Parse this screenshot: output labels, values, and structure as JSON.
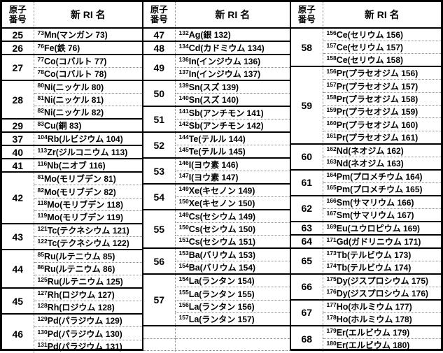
{
  "header": {
    "atomic_number_line1": "原子",
    "atomic_number_line2": "番号",
    "ri_name": "新 RI 名"
  },
  "colors": {
    "border": "#000000",
    "inner_divider": "#8a8a8a",
    "background": "#ffffff",
    "text": "#000000"
  },
  "table": {
    "column_groups": [
      {
        "groups": [
          {
            "z": "25",
            "isotopes": [
              {
                "mass": "73",
                "symbol": "Mn",
                "name": "マンガン 73"
              }
            ]
          },
          {
            "z": "26",
            "isotopes": [
              {
                "mass": "76",
                "symbol": "Fe",
                "name": "鉄 76"
              }
            ]
          },
          {
            "z": "27",
            "isotopes": [
              {
                "mass": "77",
                "symbol": "Co",
                "name": "コバルト 77"
              },
              {
                "mass": "78",
                "symbol": "Co",
                "name": "コバルト 78"
              }
            ]
          },
          {
            "z": "28",
            "isotopes": [
              {
                "mass": "80",
                "symbol": "Ni",
                "name": "ニッケル 80"
              },
              {
                "mass": "81",
                "symbol": "Ni",
                "name": "ニッケル 81"
              },
              {
                "mass": "82",
                "symbol": "Ni",
                "name": "ニッケル 82"
              }
            ]
          },
          {
            "z": "29",
            "isotopes": [
              {
                "mass": "83",
                "symbol": "Cu",
                "name": "銅 83"
              }
            ]
          },
          {
            "z": "37",
            "isotopes": [
              {
                "mass": "104",
                "symbol": "Rb",
                "name": "ルビジウム 104"
              }
            ]
          },
          {
            "z": "40",
            "isotopes": [
              {
                "mass": "113",
                "symbol": "Zr",
                "name": "ジルコニウム 113"
              }
            ]
          },
          {
            "z": "41",
            "isotopes": [
              {
                "mass": "116",
                "symbol": "Nb",
                "name": "ニオブ 116"
              }
            ]
          },
          {
            "z": "42",
            "isotopes": [
              {
                "mass": "81",
                "symbol": "Mo",
                "name": "モリブデン 81"
              },
              {
                "mass": "82",
                "symbol": "Mo",
                "name": "モリブデン 82"
              },
              {
                "mass": "118",
                "symbol": "Mo",
                "name": "モリブデン 118"
              },
              {
                "mass": "119",
                "symbol": "Mo",
                "name": "モリブデン 119"
              }
            ]
          },
          {
            "z": "43",
            "isotopes": [
              {
                "mass": "121",
                "symbol": "Tc",
                "name": "テクネシウム 121"
              },
              {
                "mass": "122",
                "symbol": "Tc",
                "name": "テクネシウム 122"
              }
            ]
          },
          {
            "z": "44",
            "isotopes": [
              {
                "mass": "85",
                "symbol": "Ru",
                "name": "ルテニウム 85"
              },
              {
                "mass": "86",
                "symbol": "Ru",
                "name": "ルテニウム 86"
              },
              {
                "mass": "125",
                "symbol": "Ru",
                "name": "ルテニウム 125"
              }
            ]
          },
          {
            "z": "45",
            "isotopes": [
              {
                "mass": "127",
                "symbol": "Rh",
                "name": "ロジウム 127"
              },
              {
                "mass": "128",
                "symbol": "Rh",
                "name": "ロジウム 128"
              }
            ]
          },
          {
            "z": "46",
            "isotopes": [
              {
                "mass": "129",
                "symbol": "Pd",
                "name": "パラジウム 129"
              },
              {
                "mass": "130",
                "symbol": "Pd",
                "name": "パラジウム 130"
              },
              {
                "mass": "131",
                "symbol": "Pd",
                "name": "パラジウム 131"
              }
            ]
          }
        ],
        "empty_rows": 0
      },
      {
        "groups": [
          {
            "z": "47",
            "isotopes": [
              {
                "mass": "132",
                "symbol": "Ag",
                "name": "銀 132"
              }
            ]
          },
          {
            "z": "48",
            "isotopes": [
              {
                "mass": "134",
                "symbol": "Cd",
                "name": "カドミウム 134"
              }
            ]
          },
          {
            "z": "49",
            "isotopes": [
              {
                "mass": "136",
                "symbol": "In",
                "name": "インジウム 136"
              },
              {
                "mass": "137",
                "symbol": "In",
                "name": "インジウム 137"
              }
            ]
          },
          {
            "z": "50",
            "isotopes": [
              {
                "mass": "139",
                "symbol": "Sn",
                "name": "スズ 139"
              },
              {
                "mass": "140",
                "symbol": "Sn",
                "name": "スズ 140"
              }
            ]
          },
          {
            "z": "51",
            "isotopes": [
              {
                "mass": "141",
                "symbol": "Sb",
                "name": "アンチモン 141"
              },
              {
                "mass": "142",
                "symbol": "Sb",
                "name": "アンチモン 142"
              }
            ]
          },
          {
            "z": "52",
            "isotopes": [
              {
                "mass": "144",
                "symbol": "Te",
                "name": "テルル 144"
              },
              {
                "mass": "145",
                "symbol": "Te",
                "name": "テルル 145"
              }
            ]
          },
          {
            "z": "53",
            "isotopes": [
              {
                "mass": "146",
                "symbol": "I",
                "name": "ヨウ素 146"
              },
              {
                "mass": "147",
                "symbol": "I",
                "name": "ヨウ素 147"
              }
            ]
          },
          {
            "z": "54",
            "isotopes": [
              {
                "mass": "149",
                "symbol": "Xe",
                "name": "キセノン 149"
              },
              {
                "mass": "150",
                "symbol": "Xe",
                "name": "キセノン 150"
              }
            ]
          },
          {
            "z": "55",
            "isotopes": [
              {
                "mass": "149",
                "symbol": "Cs",
                "name": "セシウム 149"
              },
              {
                "mass": "150",
                "symbol": "Cs",
                "name": "セシウム 150"
              },
              {
                "mass": "151",
                "symbol": "Cs",
                "name": "セシウム 151"
              }
            ]
          },
          {
            "z": "56",
            "isotopes": [
              {
                "mass": "153",
                "symbol": "Ba",
                "name": "バリウム 153"
              },
              {
                "mass": "154",
                "symbol": "Ba",
                "name": "バリウム 154"
              }
            ]
          },
          {
            "z": "57",
            "isotopes": [
              {
                "mass": "154",
                "symbol": "La",
                "name": "ランタン 154"
              },
              {
                "mass": "155",
                "symbol": "La",
                "name": "ランタン 155"
              },
              {
                "mass": "156",
                "symbol": "La",
                "name": "ランタン 156"
              },
              {
                "mass": "157",
                "symbol": "La",
                "name": "ランタン 157"
              }
            ]
          }
        ],
        "empty_rows": 2,
        "open_bottom": true
      },
      {
        "groups": [
          {
            "z": "58",
            "isotopes": [
              {
                "mass": "156",
                "symbol": "Ce",
                "name": "セリウム 156"
              },
              {
                "mass": "157",
                "symbol": "Ce",
                "name": "セリウム 157"
              },
              {
                "mass": "158",
                "symbol": "Ce",
                "name": "セリウム 158"
              }
            ]
          },
          {
            "z": "59",
            "isotopes": [
              {
                "mass": "156",
                "symbol": "Pr",
                "name": "プラセオジム 156"
              },
              {
                "mass": "157",
                "symbol": "Pr",
                "name": "プラセオジム 157"
              },
              {
                "mass": "158",
                "symbol": "Pr",
                "name": "プラセオジム 158"
              },
              {
                "mass": "159",
                "symbol": "Pr",
                "name": "プラセオジム 159"
              },
              {
                "mass": "160",
                "symbol": "Pr",
                "name": "プラセオジム 160"
              },
              {
                "mass": "161",
                "symbol": "Pr",
                "name": "プラセオジム 161"
              }
            ]
          },
          {
            "z": "60",
            "isotopes": [
              {
                "mass": "162",
                "symbol": "Nd",
                "name": "ネオジム 162"
              },
              {
                "mass": "163",
                "symbol": "Nd",
                "name": "ネオジム 163"
              }
            ]
          },
          {
            "z": "61",
            "isotopes": [
              {
                "mass": "164",
                "symbol": "Pm",
                "name": "プロメチウム 164"
              },
              {
                "mass": "165",
                "symbol": "Pm",
                "name": "プロメチウム 165"
              }
            ]
          },
          {
            "z": "62",
            "isotopes": [
              {
                "mass": "166",
                "symbol": "Sm",
                "name": "サマリウム 166"
              },
              {
                "mass": "167",
                "symbol": "Sm",
                "name": "サマリウム 167"
              }
            ]
          },
          {
            "z": "63",
            "isotopes": [
              {
                "mass": "169",
                "symbol": "Eu",
                "name": "ユウロピウム 169"
              }
            ]
          },
          {
            "z": "64",
            "isotopes": [
              {
                "mass": "171",
                "symbol": "Gd",
                "name": "ガドリニウム 171"
              }
            ]
          },
          {
            "z": "65",
            "isotopes": [
              {
                "mass": "173",
                "symbol": "Tb",
                "name": "テルビウム 173"
              },
              {
                "mass": "174",
                "symbol": "Tb",
                "name": "テルビウム 174"
              }
            ]
          },
          {
            "z": "66",
            "isotopes": [
              {
                "mass": "175",
                "symbol": "Dy",
                "name": "ジスプロシウム 175"
              },
              {
                "mass": "176",
                "symbol": "Dy",
                "name": "ジスプロシウム 176"
              }
            ]
          },
          {
            "z": "67",
            "isotopes": [
              {
                "mass": "177",
                "symbol": "Ho",
                "name": "ホルミウム 177"
              },
              {
                "mass": "178",
                "symbol": "Ho",
                "name": "ホルミウム 178"
              }
            ]
          },
          {
            "z": "68",
            "isotopes": [
              {
                "mass": "179",
                "symbol": "Er",
                "name": "エルビウム 179"
              },
              {
                "mass": "180",
                "symbol": "Er",
                "name": "エルビウム 180"
              }
            ]
          }
        ],
        "empty_rows": 0
      }
    ]
  }
}
